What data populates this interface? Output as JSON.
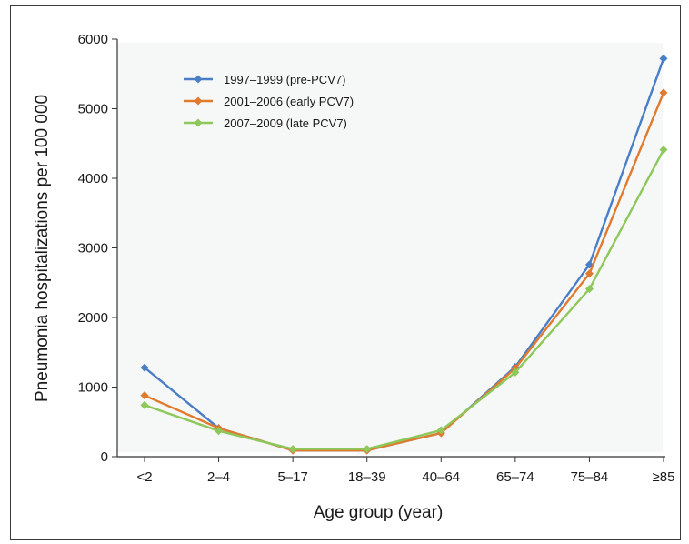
{
  "chart_data": {
    "type": "line",
    "title": "",
    "xlabel": "Age group (year)",
    "ylabel": "Pneumonia hospitalizations per 100 000",
    "categories": [
      "<2",
      "2–4",
      "5–17",
      "18–39",
      "40–64",
      "65–74",
      "75–84",
      "≥85"
    ],
    "ylim": [
      0,
      6000
    ],
    "yticks": [
      0,
      1000,
      2000,
      3000,
      4000,
      5000,
      6000
    ],
    "grid": false,
    "legend_position": "top-left",
    "series": [
      {
        "name": "1997–1999 (pre-PCV7)",
        "color": "#4a7ec6",
        "values": [
          1280,
          410,
          90,
          90,
          340,
          1290,
          2760,
          5720
        ]
      },
      {
        "name": "2001–2006 (early PCV7)",
        "color": "#e07b2e",
        "values": [
          880,
          410,
          90,
          90,
          340,
          1270,
          2630,
          5230
        ]
      },
      {
        "name": "2007–2009 (late PCV7)",
        "color": "#8dc85a",
        "values": [
          740,
          370,
          110,
          110,
          380,
          1210,
          2410,
          4410
        ]
      }
    ]
  }
}
